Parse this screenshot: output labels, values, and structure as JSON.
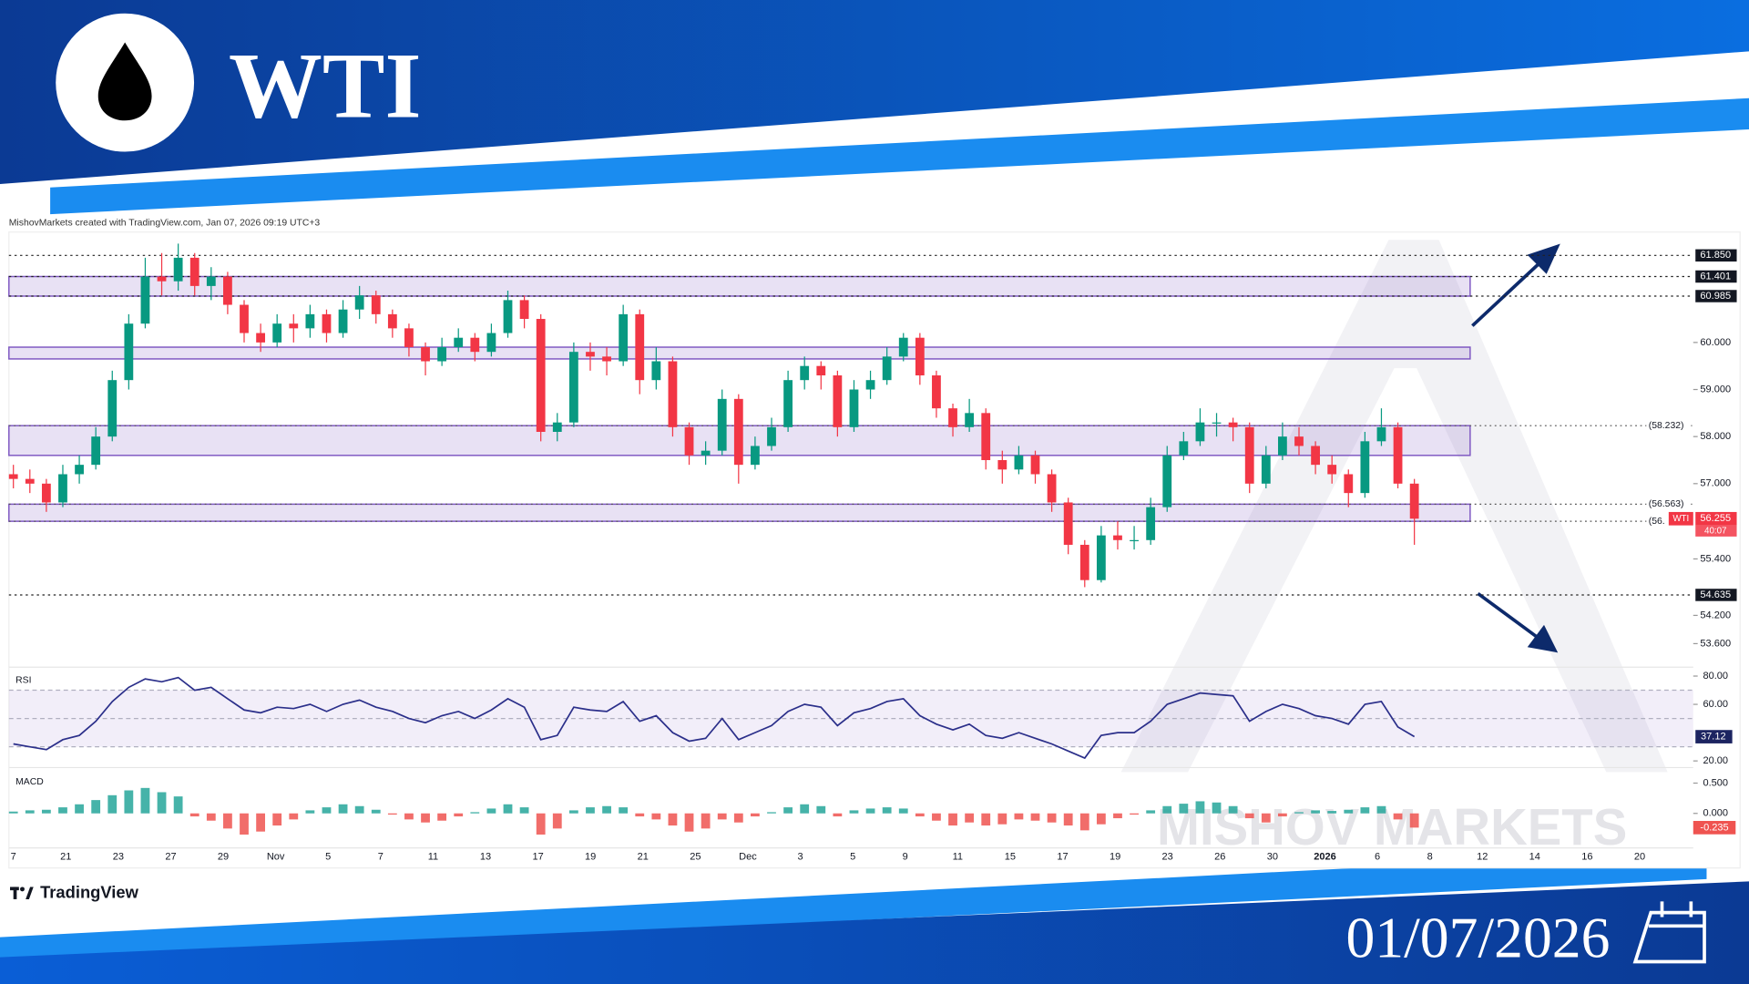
{
  "header": {
    "title": "WTI",
    "date": "01/07/2026"
  },
  "branding": {
    "platform": "TradingView",
    "watermark": "MISHOV MARKETS"
  },
  "chart_data": {
    "type": "candlestick",
    "attribution": "MishovMarkets created with TradingView.com, Jan 07, 2026 09:19 UTC+3",
    "symbol": "WTI",
    "countdown": "40:07",
    "up_color": "#089981",
    "down_color": "#f23645",
    "zone_color": "#7e57c2",
    "open": [
      57.2,
      57.1,
      57.0,
      56.6,
      57.2,
      57.4,
      58.0,
      59.2,
      60.4,
      61.4,
      61.3,
      61.8,
      61.2,
      61.4,
      60.8,
      60.2,
      60.0,
      60.4,
      60.3,
      60.6,
      60.2,
      60.7,
      61.0,
      60.6,
      60.3,
      59.9,
      59.6,
      59.9,
      60.1,
      59.8,
      60.2,
      60.9,
      60.5,
      58.1,
      58.3,
      59.8,
      59.7,
      59.6,
      60.6,
      59.2,
      59.6,
      58.2,
      57.6,
      57.7,
      58.8,
      57.4,
      57.8,
      58.2,
      59.2,
      59.5,
      59.3,
      58.2,
      59.0,
      59.2,
      59.7,
      60.1,
      59.3,
      58.6,
      58.2,
      58.5,
      57.5,
      57.3,
      57.6,
      57.2,
      56.6,
      55.7,
      54.95,
      55.9,
      55.8,
      55.8,
      56.5,
      57.6,
      57.9,
      58.3,
      58.3,
      58.2,
      57.0,
      57.6,
      58.0,
      57.8,
      57.4,
      57.2,
      56.8,
      57.9,
      58.2,
      57.0
    ],
    "high": [
      57.4,
      57.3,
      57.1,
      57.4,
      57.6,
      58.2,
      59.4,
      60.6,
      61.8,
      61.9,
      62.1,
      61.9,
      61.6,
      61.5,
      60.9,
      60.4,
      60.6,
      60.6,
      60.8,
      60.7,
      60.9,
      61.2,
      61.1,
      60.7,
      60.4,
      60.0,
      60.1,
      60.3,
      60.2,
      60.4,
      61.1,
      61.0,
      60.6,
      58.5,
      60.0,
      60.0,
      59.9,
      60.8,
      60.7,
      59.9,
      59.7,
      58.3,
      57.9,
      59.0,
      58.9,
      58.0,
      58.4,
      59.4,
      59.7,
      59.6,
      59.4,
      59.2,
      59.4,
      59.9,
      60.2,
      60.2,
      59.4,
      58.7,
      58.8,
      58.6,
      57.7,
      57.8,
      57.7,
      57.3,
      56.7,
      55.8,
      56.1,
      56.2,
      56.1,
      56.7,
      57.8,
      58.1,
      58.6,
      58.5,
      58.4,
      58.3,
      57.8,
      58.3,
      58.2,
      57.9,
      57.6,
      57.3,
      58.1,
      58.6,
      58.3,
      57.1
    ],
    "low": [
      56.9,
      56.8,
      56.4,
      56.5,
      57.0,
      57.3,
      57.9,
      59.0,
      60.3,
      61.0,
      61.1,
      61.0,
      60.9,
      60.6,
      60.0,
      59.8,
      59.9,
      60.0,
      60.1,
      60.0,
      60.1,
      60.5,
      60.4,
      60.1,
      59.7,
      59.3,
      59.5,
      59.8,
      59.6,
      59.7,
      60.1,
      60.3,
      57.9,
      57.9,
      58.2,
      59.4,
      59.3,
      59.5,
      58.9,
      59.0,
      58.0,
      57.4,
      57.4,
      57.6,
      57.0,
      57.3,
      57.7,
      58.1,
      59.0,
      59.0,
      58.0,
      58.1,
      58.8,
      59.1,
      59.6,
      59.1,
      58.4,
      58.0,
      58.1,
      57.3,
      57.0,
      57.2,
      57.0,
      56.4,
      55.5,
      54.8,
      54.9,
      55.6,
      55.6,
      55.7,
      56.4,
      57.5,
      57.8,
      58.0,
      57.9,
      56.8,
      56.9,
      57.5,
      57.6,
      57.2,
      57.0,
      56.5,
      56.7,
      57.8,
      56.9,
      55.7
    ],
    "close": [
      57.1,
      57.0,
      56.6,
      57.2,
      57.4,
      58.0,
      59.2,
      60.4,
      61.4,
      61.3,
      61.8,
      61.2,
      61.4,
      60.8,
      60.2,
      60.0,
      60.4,
      60.3,
      60.6,
      60.2,
      60.7,
      61.0,
      60.6,
      60.3,
      59.9,
      59.6,
      59.9,
      60.1,
      59.8,
      60.2,
      60.9,
      60.5,
      58.1,
      58.3,
      59.8,
      59.7,
      59.6,
      60.6,
      59.2,
      59.6,
      58.2,
      57.6,
      57.7,
      58.8,
      57.4,
      57.8,
      58.2,
      59.2,
      59.5,
      59.3,
      58.2,
      59.0,
      59.2,
      59.7,
      60.1,
      59.3,
      58.6,
      58.2,
      58.5,
      57.5,
      57.3,
      57.6,
      57.2,
      56.6,
      55.7,
      54.95,
      55.9,
      55.8,
      55.8,
      56.5,
      57.6,
      57.9,
      58.3,
      58.3,
      58.2,
      57.0,
      57.6,
      58.0,
      57.8,
      57.4,
      57.2,
      56.8,
      57.9,
      58.2,
      57.0,
      56.255
    ],
    "ylim": [
      53.1,
      62.18
    ],
    "yticks": [
      {
        "value": 60,
        "label": "60.000"
      },
      {
        "value": 59,
        "label": "59.000"
      },
      {
        "value": 58,
        "label": "58.000"
      },
      {
        "value": 57,
        "label": "57.000"
      },
      {
        "value": 55.4,
        "label": "55.400"
      },
      {
        "value": 54.2,
        "label": "54.200"
      },
      {
        "value": 53.6,
        "label": "53.600"
      }
    ],
    "levels": [
      {
        "value": 61.85,
        "label": "61.850"
      },
      {
        "value": 61.401,
        "label": "61.401"
      },
      {
        "value": 60.985,
        "label": "60.985"
      },
      {
        "value": 54.635,
        "label": "54.635"
      }
    ],
    "marked_levels": [
      {
        "value": 58.232,
        "label": "(58.232)"
      },
      {
        "value": 56.563,
        "label": "(56.563)"
      },
      {
        "value": 56.2,
        "label": "(56."
      }
    ],
    "zones": [
      {
        "top": 61.401,
        "bottom": 60.985
      },
      {
        "top": 59.9,
        "bottom": 59.65
      },
      {
        "top": 58.232,
        "bottom": 57.6
      },
      {
        "top": 56.563,
        "bottom": 56.2
      }
    ],
    "xticks": [
      "7",
      "21",
      "23",
      "27",
      "29",
      "Nov",
      "5",
      "7",
      "11",
      "13",
      "17",
      "19",
      "21",
      "25",
      "Dec",
      "3",
      "5",
      "9",
      "11",
      "15",
      "17",
      "19",
      "23",
      "26",
      "30",
      "2026",
      "6",
      "8",
      "12",
      "14",
      "16",
      "20"
    ],
    "rsi": {
      "label": "RSI",
      "color": "#2b2f8a",
      "band": [
        30,
        70
      ],
      "midline": 50,
      "ylim": [
        15.3,
        86.3
      ],
      "yticks": [
        {
          "value": 80,
          "label": "80.00"
        },
        {
          "value": 60,
          "label": "60.00"
        },
        {
          "value": 20,
          "label": "20.00"
        }
      ],
      "values": [
        32,
        30,
        28,
        35,
        38,
        48,
        62,
        72,
        78,
        76,
        79,
        70,
        72,
        64,
        56,
        54,
        58,
        57,
        60,
        55,
        60,
        63,
        58,
        55,
        50,
        47,
        52,
        55,
        50,
        56,
        64,
        58,
        35,
        38,
        58,
        56,
        55,
        62,
        48,
        52,
        40,
        34,
        36,
        50,
        35,
        40,
        45,
        55,
        60,
        58,
        45,
        54,
        57,
        62,
        64,
        52,
        46,
        42,
        46,
        38,
        36,
        40,
        36,
        32,
        27,
        22,
        38,
        40,
        40,
        48,
        60,
        64,
        68,
        67,
        66,
        48,
        55,
        60,
        57,
        52,
        50,
        46,
        60,
        62,
        44,
        37.12
      ]
    },
    "macd": {
      "label": "MACD",
      "up_color": "#26a69a",
      "down_color": "#ef5350",
      "ylim": [
        -0.57,
        0.72
      ],
      "yticks": [
        {
          "value": 0.5,
          "label": "0.500"
        },
        {
          "value": 0,
          "label": "0.000"
        }
      ],
      "values": [
        0.03,
        0.05,
        0.06,
        0.1,
        0.15,
        0.22,
        0.3,
        0.38,
        0.42,
        0.35,
        0.28,
        -0.05,
        -0.12,
        -0.25,
        -0.35,
        -0.3,
        -0.2,
        -0.1,
        0.05,
        0.1,
        0.15,
        0.12,
        0.06,
        -0.02,
        -0.1,
        -0.15,
        -0.12,
        -0.05,
        0.02,
        0.08,
        0.15,
        0.1,
        -0.35,
        -0.25,
        0.05,
        0.1,
        0.12,
        0.1,
        -0.05,
        -0.1,
        -0.2,
        -0.3,
        -0.25,
        -0.1,
        -0.15,
        -0.05,
        0.02,
        0.1,
        0.15,
        0.12,
        -0.05,
        0.05,
        0.08,
        0.1,
        0.08,
        -0.05,
        -0.12,
        -0.2,
        -0.15,
        -0.2,
        -0.18,
        -0.1,
        -0.12,
        -0.15,
        -0.2,
        -0.28,
        -0.18,
        -0.08,
        -0.02,
        0.05,
        0.12,
        0.16,
        0.2,
        0.18,
        0.12,
        -0.08,
        -0.15,
        -0.05,
        0.02,
        0.05,
        0.04,
        0.06,
        0.1,
        0.12,
        -0.1,
        -0.235
      ]
    }
  }
}
